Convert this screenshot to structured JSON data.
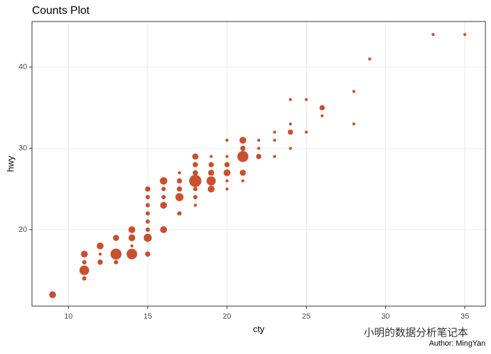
{
  "chart_data": {
    "type": "scatter",
    "title": "Counts Plot",
    "x_label": "cty",
    "y_label": "hwy",
    "caption": "Author: MingYan",
    "watermark": "小明的数据分析笔记本",
    "color": "#c8502f",
    "grid": true,
    "xlim": [
      7.7,
      36.3
    ],
    "ylim": [
      10.6,
      45.6
    ],
    "xticks": [
      10,
      15,
      20,
      25,
      30,
      35
    ],
    "yticks": [
      20,
      30,
      40
    ],
    "x": [
      9,
      11,
      11,
      11,
      11,
      12,
      12,
      12,
      13,
      13,
      13,
      14,
      14,
      14,
      14,
      15,
      15,
      15,
      15,
      15,
      15,
      15,
      15,
      16,
      16,
      16,
      16,
      16,
      17,
      17,
      17,
      17,
      17,
      18,
      18,
      18,
      18,
      18,
      18,
      18,
      19,
      19,
      19,
      19,
      19,
      20,
      20,
      20,
      20,
      20,
      20,
      21,
      21,
      21,
      21,
      21,
      22,
      22,
      22,
      23,
      23,
      23,
      24,
      24,
      24,
      24,
      25,
      25,
      26,
      26,
      28,
      28,
      29,
      33,
      35
    ],
    "y": [
      12,
      14,
      15,
      16,
      17,
      16,
      17,
      18,
      16,
      17,
      19,
      17,
      18,
      19,
      20,
      17,
      19,
      20,
      21,
      22,
      23,
      24,
      25,
      20,
      23,
      24,
      25,
      26,
      22,
      24,
      25,
      26,
      27,
      23,
      24,
      25,
      26,
      27,
      28,
      29,
      25,
      26,
      27,
      28,
      29,
      25,
      26,
      27,
      28,
      29,
      31,
      26,
      27,
      29,
      30,
      31,
      29,
      30,
      31,
      29,
      31,
      32,
      30,
      32,
      33,
      36,
      32,
      36,
      34,
      35,
      33,
      37,
      41,
      44,
      44
    ],
    "sizes": [
      5,
      2,
      10,
      2,
      5,
      3,
      1,
      5,
      2,
      13,
      4,
      12,
      1,
      5,
      5,
      3,
      7,
      2,
      2,
      2,
      2,
      2,
      3,
      5,
      5,
      2,
      2,
      6,
      2,
      7,
      3,
      3,
      1,
      1,
      2,
      2,
      16,
      3,
      3,
      4,
      5,
      9,
      4,
      3,
      1,
      1,
      1,
      5,
      3,
      1,
      1,
      1,
      4,
      13,
      3,
      5,
      3,
      1,
      1,
      1,
      1,
      1,
      1,
      3,
      1,
      1,
      1,
      1,
      1,
      3,
      1,
      1,
      1,
      1,
      1
    ]
  }
}
